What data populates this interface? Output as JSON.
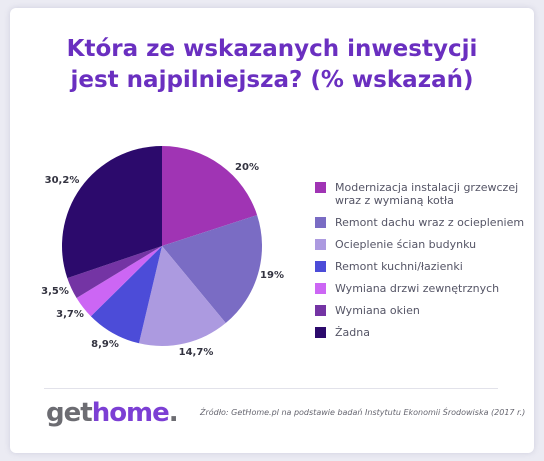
{
  "title_line1": "Która ze wskazanych inwestycji",
  "title_line2": "jest najpilniejsza? (% wskazań)",
  "source": "Źródło: GetHome.pl na podstawie badań Instytutu Ekonomii Środowiska (2017 r.)",
  "logo": {
    "part1": "get",
    "part2": "home",
    "part3": "."
  },
  "colors": {
    "title": "#6a2fc0",
    "logo_accent": "#7c3fd4"
  },
  "chart_data": {
    "type": "pie",
    "title": "Która ze wskazanych inwestycji jest najpilniejsza? (% wskazań)",
    "series": [
      {
        "name": "Modernizacja instalacji grzewczej wraz z wymianą kotła",
        "value": 20,
        "label": "20%",
        "color": "#a034b4"
      },
      {
        "name": "Remont dachu wraz z ociepleniem",
        "value": 19,
        "label": "19%",
        "color": "#7a6cc4"
      },
      {
        "name": "Ocieplenie ścian budynku",
        "value": 14.7,
        "label": "14,7%",
        "color": "#ac9ae0"
      },
      {
        "name": "Remont kuchni/łazienki",
        "value": 8.9,
        "label": "8,9%",
        "color": "#4c4cd8"
      },
      {
        "name": "Wymiana drzwi zewnętrznych",
        "value": 3.7,
        "label": "3,7%",
        "color": "#cc66f4"
      },
      {
        "name": "Wymiana okien",
        "value": 3.5,
        "label": "3,5%",
        "color": "#7434a4"
      },
      {
        "name": "Żadna",
        "value": 30.2,
        "label": "30,2%",
        "color": "#2c0a6c"
      }
    ],
    "legend_position": "right"
  }
}
